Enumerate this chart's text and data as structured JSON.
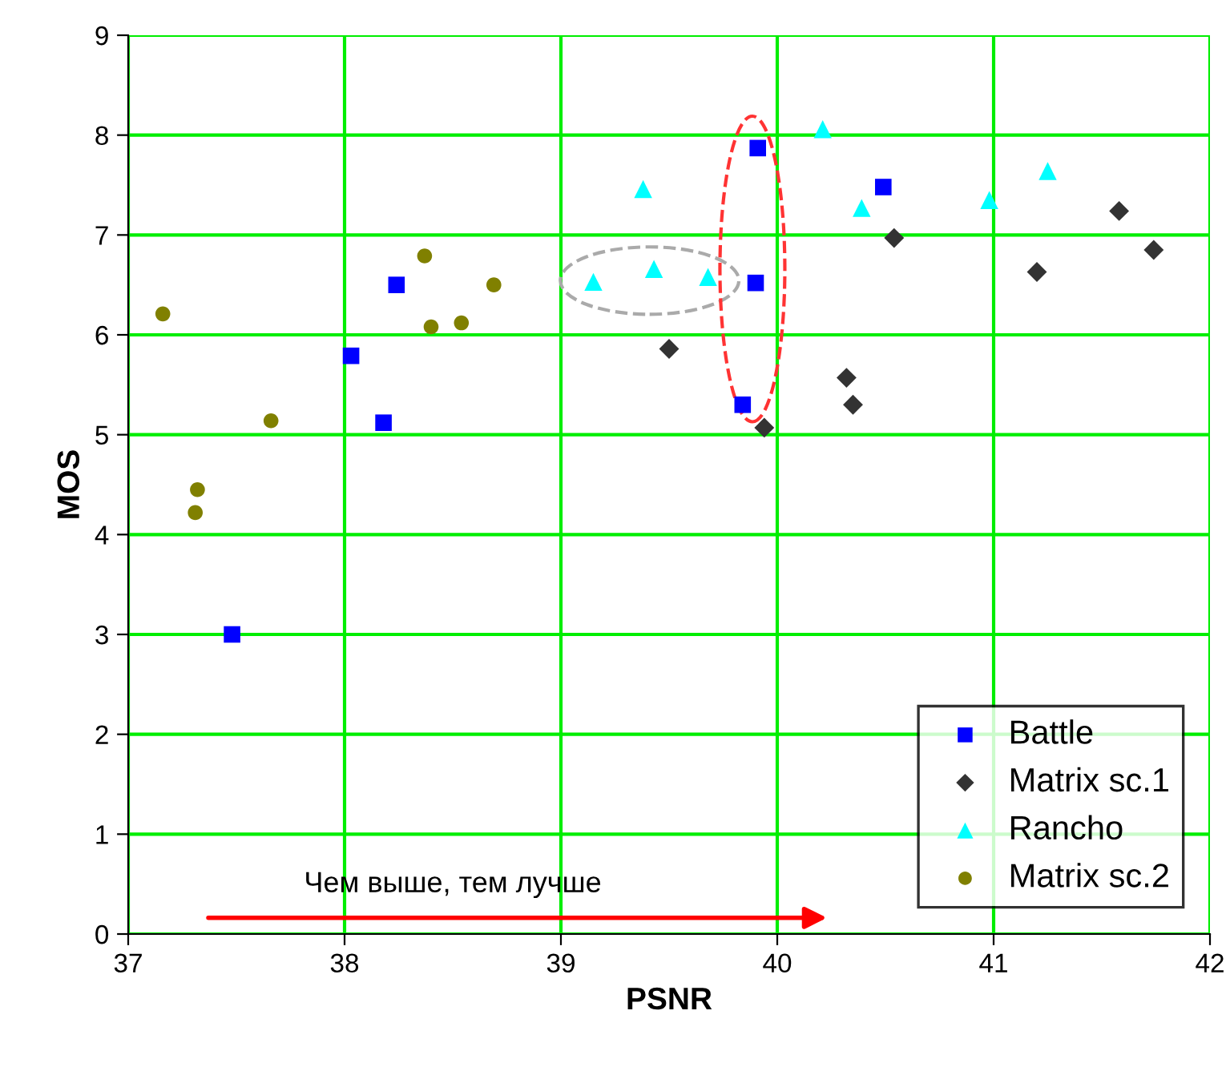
{
  "chart_data": {
    "type": "scatter",
    "xlabel": "PSNR",
    "ylabel": "MOS",
    "xlim": [
      37,
      42
    ],
    "xticks": [
      37,
      38,
      39,
      40,
      41,
      42
    ],
    "ylim": [
      0,
      9
    ],
    "yticks": [
      0,
      1,
      2,
      3,
      4,
      5,
      6,
      7,
      8,
      9
    ],
    "grid": true,
    "legend": "bottom right",
    "annotations": [
      "Чем выше, тем лучше"
    ],
    "series": [
      {
        "name": "Battle",
        "color": "#0000ff",
        "marker": "square",
        "x": [
          37.48,
          38.03,
          38.18,
          38.24,
          39.91,
          39.9,
          39.84,
          40.49
        ],
        "values": [
          3.0,
          5.79,
          5.12,
          6.5,
          7.87,
          6.52,
          5.3,
          7.48
        ]
      },
      {
        "name": "Matrix sc.1",
        "color": "#333333",
        "marker": "diamond",
        "x": [
          39.5,
          39.94,
          40.32,
          40.35,
          40.54,
          41.2,
          41.58,
          41.74
        ],
        "values": [
          5.86,
          5.07,
          5.57,
          5.3,
          6.97,
          6.63,
          7.24,
          6.85
        ]
      },
      {
        "name": "Rancho",
        "color": "#00ffff",
        "marker": "triangle",
        "x": [
          39.15,
          39.43,
          39.68,
          39.38,
          40.21,
          40.39,
          40.98,
          41.25
        ],
        "values": [
          6.53,
          6.66,
          6.58,
          7.46,
          8.06,
          7.27,
          7.35,
          7.64
        ]
      },
      {
        "name": "Matrix sc.2",
        "color": "#808000",
        "marker": "circle",
        "x": [
          37.16,
          37.32,
          37.31,
          37.66,
          38.37,
          38.4,
          38.54,
          38.69
        ],
        "values": [
          6.21,
          4.45,
          4.22,
          5.14,
          6.79,
          6.08,
          6.12,
          6.5
        ]
      }
    ]
  }
}
